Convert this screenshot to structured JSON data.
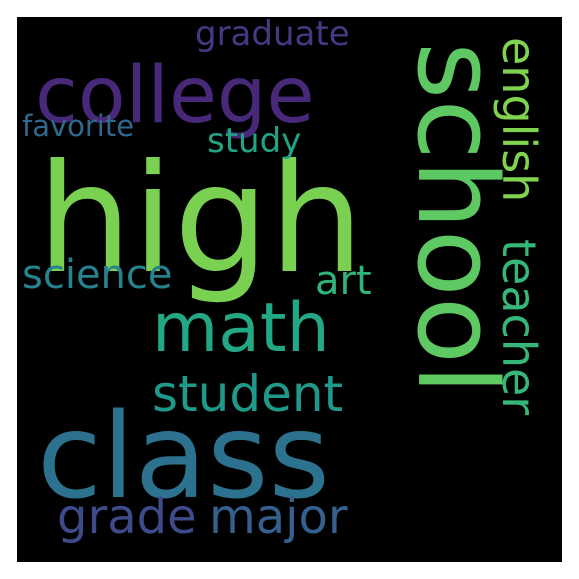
{
  "words": [
    {
      "text": "high",
      "color": "#7ad151"
    },
    {
      "text": "school",
      "color": "#5ec962"
    },
    {
      "text": "class",
      "color": "#2c728e"
    },
    {
      "text": "college",
      "color": "#482878"
    },
    {
      "text": "math",
      "color": "#22a884"
    },
    {
      "text": "english",
      "color": "#7fd34e"
    },
    {
      "text": "teacher",
      "color": "#35b779"
    },
    {
      "text": "student",
      "color": "#1f9a8a"
    },
    {
      "text": "grade",
      "color": "#3e4a89"
    },
    {
      "text": "major",
      "color": "#355f8d"
    },
    {
      "text": "science",
      "color": "#26828e"
    },
    {
      "text": "art",
      "color": "#2fb47c"
    },
    {
      "text": "graduate",
      "color": "#443983"
    },
    {
      "text": "favorite",
      "color": "#31688e"
    },
    {
      "text": "study",
      "color": "#20a486"
    }
  ]
}
